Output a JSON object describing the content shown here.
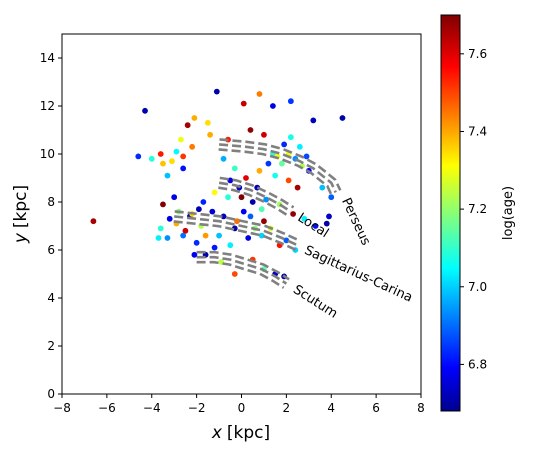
{
  "chart_data": {
    "type": "scatter",
    "title": "",
    "xlabel_var": "x",
    "xlabel_unit": "[kpc]",
    "ylabel_var": "y",
    "ylabel_unit": "[kpc]",
    "xlim": [
      -8,
      8
    ],
    "ylim": [
      0,
      15
    ],
    "x_ticks": [
      -8,
      -6,
      -4,
      -2,
      0,
      2,
      4,
      6,
      8
    ],
    "y_ticks": [
      0,
      2,
      4,
      6,
      8,
      10,
      12,
      14
    ],
    "colorbar": {
      "label": "log(age)",
      "colormap": "jet",
      "range": [
        6.68,
        7.7
      ],
      "ticks": [
        "6.8",
        "7.0",
        "7.2",
        "7.4",
        "7.6"
      ],
      "tick_values": [
        6.8,
        7.0,
        7.2,
        7.4,
        7.6
      ]
    },
    "arms": [
      {
        "name": "Perseus",
        "x": [
          -1.0,
          0.2,
          1.0,
          1.8,
          2.6,
          3.2,
          3.6,
          4.0,
          4.2
        ],
        "y": [
          10.4,
          10.3,
          10.2,
          10.0,
          9.7,
          9.4,
          9.1,
          8.8,
          8.4
        ]
      },
      {
        "name": "Local",
        "x": [
          -1.0,
          -0.3,
          0.4,
          1.1,
          1.7,
          2.2
        ],
        "y": [
          8.8,
          8.7,
          8.5,
          8.2,
          7.9,
          7.6
        ]
      },
      {
        "name": "Sagittarius-Carina",
        "x": [
          -3.0,
          -2.0,
          -1.0,
          0.0,
          1.0,
          1.8,
          2.5
        ],
        "y": [
          7.4,
          7.3,
          7.2,
          7.0,
          6.8,
          6.5,
          6.2
        ]
      },
      {
        "name": "Scutum",
        "x": [
          -2.0,
          -1.2,
          -0.5,
          0.2,
          0.9,
          1.5,
          2.0
        ],
        "y": [
          5.7,
          5.7,
          5.6,
          5.4,
          5.2,
          4.9,
          4.6
        ]
      }
    ],
    "points": [
      {
        "x": -6.6,
        "y": 7.2,
        "c": 7.66
      },
      {
        "x": -4.3,
        "y": 11.8,
        "c": 6.73
      },
      {
        "x": -4.6,
        "y": 9.9,
        "c": 6.85
      },
      {
        "x": -4.0,
        "y": 9.8,
        "c": 7.1
      },
      {
        "x": -3.6,
        "y": 10.0,
        "c": 7.55
      },
      {
        "x": -3.5,
        "y": 9.6,
        "c": 7.38
      },
      {
        "x": -3.1,
        "y": 9.7,
        "c": 7.35
      },
      {
        "x": -2.9,
        "y": 10.1,
        "c": 7.06
      },
      {
        "x": -2.7,
        "y": 10.6,
        "c": 7.3
      },
      {
        "x": -2.4,
        "y": 11.2,
        "c": 7.66
      },
      {
        "x": -2.1,
        "y": 11.5,
        "c": 7.4
      },
      {
        "x": -1.5,
        "y": 11.3,
        "c": 7.35
      },
      {
        "x": -1.1,
        "y": 12.6,
        "c": 6.72
      },
      {
        "x": 0.1,
        "y": 12.1,
        "c": 7.63
      },
      {
        "x": 0.8,
        "y": 12.5,
        "c": 7.45
      },
      {
        "x": 1.4,
        "y": 12.0,
        "c": 6.78
      },
      {
        "x": 2.2,
        "y": 12.2,
        "c": 6.86
      },
      {
        "x": 3.2,
        "y": 11.4,
        "c": 6.74
      },
      {
        "x": 4.5,
        "y": 11.5,
        "c": 6.72
      },
      {
        "x": -3.3,
        "y": 9.1,
        "c": 7.0
      },
      {
        "x": -2.6,
        "y": 9.4,
        "c": 6.82
      },
      {
        "x": -3.0,
        "y": 8.2,
        "c": 6.78
      },
      {
        "x": -3.5,
        "y": 7.9,
        "c": 7.7
      },
      {
        "x": -2.8,
        "y": 7.6,
        "c": 7.2
      },
      {
        "x": -2.3,
        "y": 7.4,
        "c": 6.74
      },
      {
        "x": -3.6,
        "y": 6.9,
        "c": 7.1
      },
      {
        "x": -3.7,
        "y": 6.5,
        "c": 7.05
      },
      {
        "x": -3.3,
        "y": 6.5,
        "c": 6.95
      },
      {
        "x": -2.5,
        "y": 6.8,
        "c": 7.62
      },
      {
        "x": -2.0,
        "y": 6.3,
        "c": 6.85
      },
      {
        "x": -1.6,
        "y": 6.6,
        "c": 7.42
      },
      {
        "x": -1.2,
        "y": 6.1,
        "c": 6.83
      },
      {
        "x": -1.6,
        "y": 5.8,
        "c": 6.72
      },
      {
        "x": -0.9,
        "y": 5.5,
        "c": 7.25
      },
      {
        "x": -0.3,
        "y": 5.0,
        "c": 7.5
      },
      {
        "x": 0.5,
        "y": 5.6,
        "c": 7.52
      },
      {
        "x": 1.0,
        "y": 5.2,
        "c": 7.15
      },
      {
        "x": 1.5,
        "y": 5.0,
        "c": 6.75
      },
      {
        "x": 1.9,
        "y": 4.9,
        "c": 6.72
      },
      {
        "x": -2.1,
        "y": 5.8,
        "c": 6.8
      },
      {
        "x": -2.6,
        "y": 6.6,
        "c": 6.92
      },
      {
        "x": -0.5,
        "y": 6.2,
        "c": 7.05
      },
      {
        "x": 0.3,
        "y": 6.5,
        "c": 6.78
      },
      {
        "x": 0.9,
        "y": 6.6,
        "c": 7.02
      },
      {
        "x": 1.3,
        "y": 6.9,
        "c": 7.28
      },
      {
        "x": 2.0,
        "y": 6.4,
        "c": 6.9
      },
      {
        "x": 1.0,
        "y": 7.2,
        "c": 7.68
      },
      {
        "x": 0.4,
        "y": 7.4,
        "c": 6.9
      },
      {
        "x": -0.2,
        "y": 7.2,
        "c": 7.46
      },
      {
        "x": -0.8,
        "y": 7.4,
        "c": 6.74
      },
      {
        "x": -1.3,
        "y": 7.6,
        "c": 6.76
      },
      {
        "x": -1.9,
        "y": 7.7,
        "c": 6.73
      },
      {
        "x": -2.2,
        "y": 7.5,
        "c": 7.36
      },
      {
        "x": -1.7,
        "y": 8.0,
        "c": 6.84
      },
      {
        "x": -1.2,
        "y": 8.4,
        "c": 7.32
      },
      {
        "x": -0.6,
        "y": 8.2,
        "c": 7.1
      },
      {
        "x": -0.1,
        "y": 8.6,
        "c": 6.75
      },
      {
        "x": 0.5,
        "y": 8.0,
        "c": 6.72
      },
      {
        "x": 1.1,
        "y": 8.1,
        "c": 6.95
      },
      {
        "x": 1.7,
        "y": 7.9,
        "c": 7.22
      },
      {
        "x": 2.3,
        "y": 7.5,
        "c": 7.68
      },
      {
        "x": 2.8,
        "y": 7.3,
        "c": 7.05
      },
      {
        "x": 3.3,
        "y": 7.0,
        "c": 6.82
      },
      {
        "x": 3.8,
        "y": 7.1,
        "c": 6.72
      },
      {
        "x": 3.9,
        "y": 7.4,
        "c": 6.75
      },
      {
        "x": 4.0,
        "y": 8.2,
        "c": 6.9
      },
      {
        "x": 3.6,
        "y": 8.6,
        "c": 7.0
      },
      {
        "x": 2.5,
        "y": 8.6,
        "c": 7.66
      },
      {
        "x": 2.1,
        "y": 8.9,
        "c": 7.5
      },
      {
        "x": 1.5,
        "y": 9.1,
        "c": 7.08
      },
      {
        "x": 1.2,
        "y": 9.6,
        "c": 6.86
      },
      {
        "x": 0.8,
        "y": 9.3,
        "c": 7.4
      },
      {
        "x": 0.2,
        "y": 9.0,
        "c": 7.6
      },
      {
        "x": -0.3,
        "y": 9.4,
        "c": 7.12
      },
      {
        "x": -0.8,
        "y": 9.8,
        "c": 6.98
      },
      {
        "x": -0.5,
        "y": 8.9,
        "c": 6.78
      },
      {
        "x": 0.0,
        "y": 8.2,
        "c": 7.7
      },
      {
        "x": 0.7,
        "y": 8.6,
        "c": 6.74
      },
      {
        "x": 1.8,
        "y": 9.6,
        "c": 7.16
      },
      {
        "x": 2.1,
        "y": 10.0,
        "c": 7.3
      },
      {
        "x": 2.4,
        "y": 9.8,
        "c": 6.95
      },
      {
        "x": 2.7,
        "y": 9.5,
        "c": 7.24
      },
      {
        "x": 3.0,
        "y": 9.3,
        "c": 6.8
      },
      {
        "x": 2.6,
        "y": 10.3,
        "c": 7.05
      },
      {
        "x": 1.9,
        "y": 10.4,
        "c": 6.85
      },
      {
        "x": 1.4,
        "y": 10.0,
        "c": 7.1
      },
      {
        "x": 1.0,
        "y": 10.8,
        "c": 7.62
      },
      {
        "x": 0.4,
        "y": 11.0,
        "c": 7.68
      },
      {
        "x": -0.6,
        "y": 10.6,
        "c": 7.55
      },
      {
        "x": -1.4,
        "y": 10.8,
        "c": 7.4
      },
      {
        "x": -2.2,
        "y": 10.3,
        "c": 7.45
      },
      {
        "x": -2.6,
        "y": 9.9,
        "c": 7.52
      },
      {
        "x": 2.2,
        "y": 10.7,
        "c": 7.08
      },
      {
        "x": 2.9,
        "y": 9.9,
        "c": 6.88
      },
      {
        "x": 1.6,
        "y": 9.9,
        "c": 7.3
      },
      {
        "x": 0.1,
        "y": 7.6,
        "c": 6.8
      },
      {
        "x": 0.9,
        "y": 7.7,
        "c": 7.14
      },
      {
        "x": -1.0,
        "y": 6.6,
        "c": 7.0
      },
      {
        "x": -0.3,
        "y": 6.9,
        "c": 6.72
      },
      {
        "x": 0.6,
        "y": 6.9,
        "c": 7.2
      },
      {
        "x": 1.7,
        "y": 6.2,
        "c": 7.56
      },
      {
        "x": 2.4,
        "y": 6.0,
        "c": 7.02
      },
      {
        "x": -1.8,
        "y": 7.0,
        "c": 7.24
      },
      {
        "x": -2.9,
        "y": 7.1,
        "c": 7.4
      },
      {
        "x": -3.2,
        "y": 7.3,
        "c": 6.78
      }
    ]
  }
}
